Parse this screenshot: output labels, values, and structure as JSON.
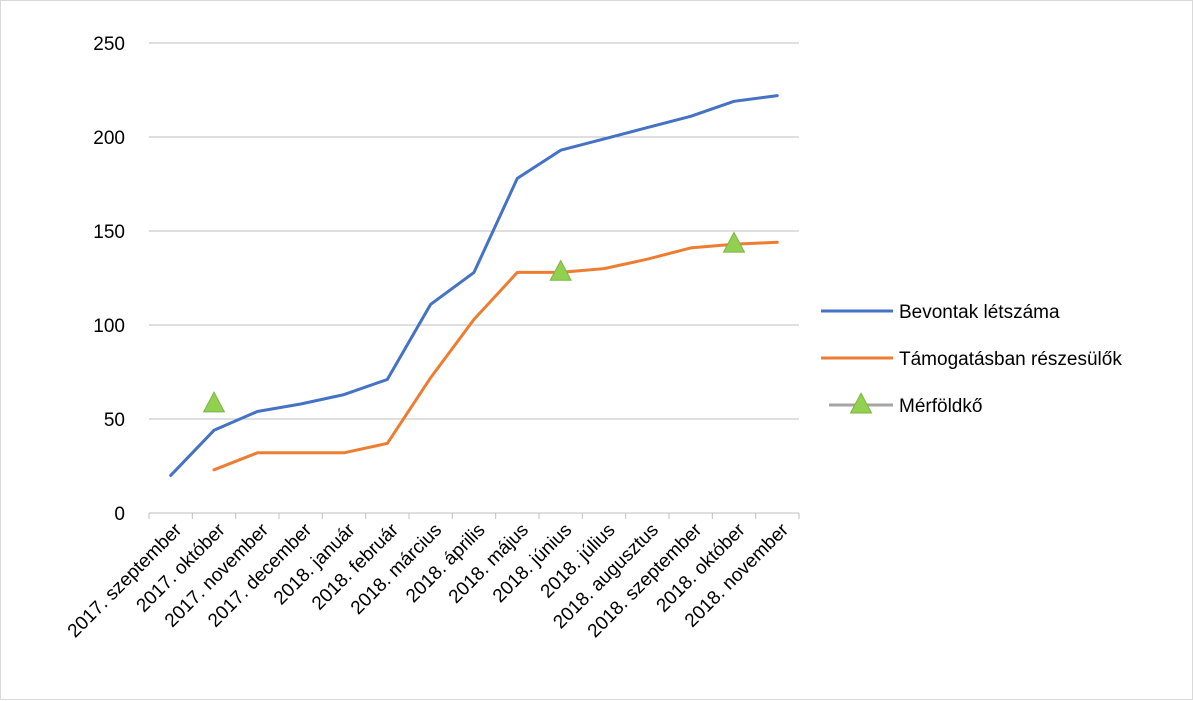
{
  "chart_data": {
    "type": "line",
    "title": "",
    "xlabel": "",
    "ylabel": "",
    "ylim": [
      0,
      250
    ],
    "yticks": [
      0,
      50,
      100,
      150,
      200,
      250
    ],
    "grid": "horizontal",
    "legend_position": "right",
    "categories": [
      "2017. szeptember",
      "2017. október",
      "2017. november",
      "2017. december",
      "2018. január",
      "2018. február",
      "2018. március",
      "2018. április",
      "2018. május",
      "2018. június",
      "2018. július",
      "2018. augusztus",
      "2018. szeptember",
      "2018. október",
      "2018. november"
    ],
    "series": [
      {
        "name": "Bevontak létszáma",
        "type": "line",
        "color": "#4472C4",
        "values": [
          20,
          44,
          54,
          58,
          63,
          71,
          111,
          128,
          178,
          193,
          199,
          205,
          211,
          219,
          222
        ]
      },
      {
        "name": "Támogatásban részesülők",
        "type": "line",
        "color": "#ED7D31",
        "values": [
          null,
          23,
          32,
          32,
          32,
          37,
          72,
          103,
          128,
          128,
          130,
          135,
          141,
          143,
          144
        ]
      },
      {
        "name": "Mérföldkő",
        "type": "marker",
        "marker": "triangle",
        "color": "#92D050",
        "line_color": "#A5A5A5",
        "values": [
          null,
          58,
          null,
          null,
          null,
          null,
          null,
          null,
          null,
          128,
          null,
          null,
          null,
          143,
          null
        ]
      }
    ]
  }
}
